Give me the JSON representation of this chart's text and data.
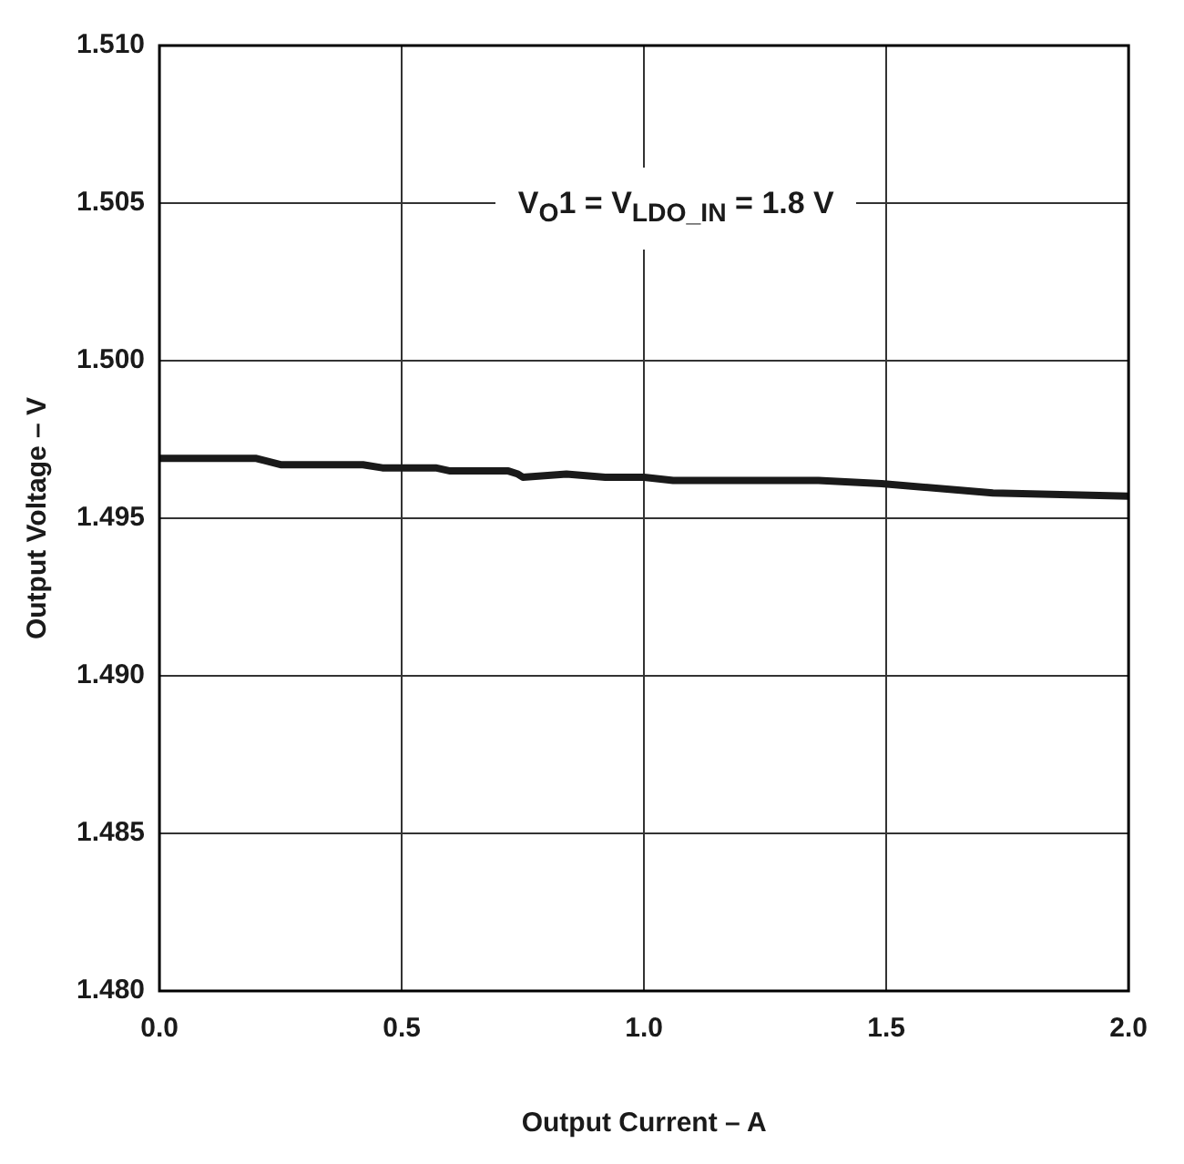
{
  "chart_data": {
    "type": "line",
    "xlabel": "Output Current – A",
    "ylabel": "Output Voltage – V",
    "annotations": [
      "V$_{O}$1 = V$_{LDO_IN}$ = 1.8 V"
    ],
    "x": [
      0,
      0.2,
      0.25,
      0.42,
      0.46,
      0.57,
      0.6,
      0.72,
      0.74,
      0.75,
      0.84,
      0.92,
      1.0,
      1.06,
      1.16,
      1.36,
      1.49,
      1.72,
      2.0
    ],
    "series": [
      {
        "color": "#1a1a1a",
        "values": [
          1.4969,
          1.4969,
          1.4967,
          1.4967,
          1.4966,
          1.4966,
          1.4965,
          1.4965,
          1.4964,
          1.4963,
          1.4964,
          1.4963,
          1.4963,
          1.4962,
          1.4962,
          1.4962,
          1.4961,
          1.4958,
          1.4957
        ]
      }
    ],
    "xlim": [
      0,
      2
    ],
    "xticks": [
      {
        "value": 0,
        "label": "0.0"
      },
      {
        "value": 0.5,
        "label": "0.5"
      },
      {
        "value": 1,
        "label": "1.0"
      },
      {
        "value": 1.5,
        "label": "1.5"
      },
      {
        "value": 2,
        "label": "2.0"
      }
    ],
    "ylim": [
      1.48,
      1.51
    ],
    "yticks": [
      {
        "value": 1.48,
        "label": "1.480"
      },
      {
        "value": 1.485,
        "label": "1.485"
      },
      {
        "value": 1.49,
        "label": "1.490"
      },
      {
        "value": 1.495,
        "label": "1.495"
      },
      {
        "value": 1.5,
        "label": "1.500"
      },
      {
        "value": 1.505,
        "label": "1.505"
      },
      {
        "value": 1.51,
        "label": "1.510"
      }
    ],
    "grid": true,
    "legend": false,
    "marker": "none",
    "line_style": "solid"
  }
}
